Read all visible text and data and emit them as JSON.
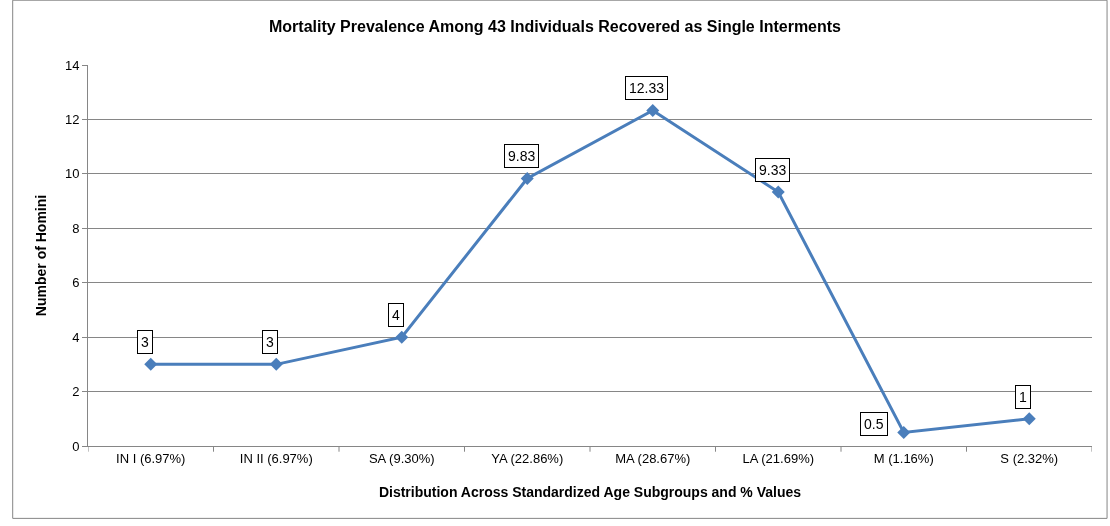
{
  "chart_data": {
    "type": "line",
    "title": "Mortality Prevalence Among 43 Individuals Recovered as Single Interments",
    "xlabel": "Distribution Across Standardized Age Subgroups and % Values",
    "ylabel": "Number of Homini",
    "categories": [
      "IN I (6.97%)",
      "IN II (6.97%)",
      "SA (9.30%)",
      "YA (22.86%)",
      "MA (28.67%)",
      "LA (21.69%)",
      "M (1.16%)",
      "S (2.32%)"
    ],
    "series": [
      {
        "color": "#4a7ebb",
        "values": [
          3,
          3,
          4,
          9.83,
          12.33,
          9.33,
          0.5,
          1
        ]
      }
    ],
    "ylim": [
      0,
      14
    ],
    "yticks": [
      0,
      2,
      4,
      6,
      8,
      10,
      12,
      14
    ],
    "grid": "y",
    "marker": "diamond",
    "line_style": "solid",
    "data_labels": true,
    "legend": false
  }
}
